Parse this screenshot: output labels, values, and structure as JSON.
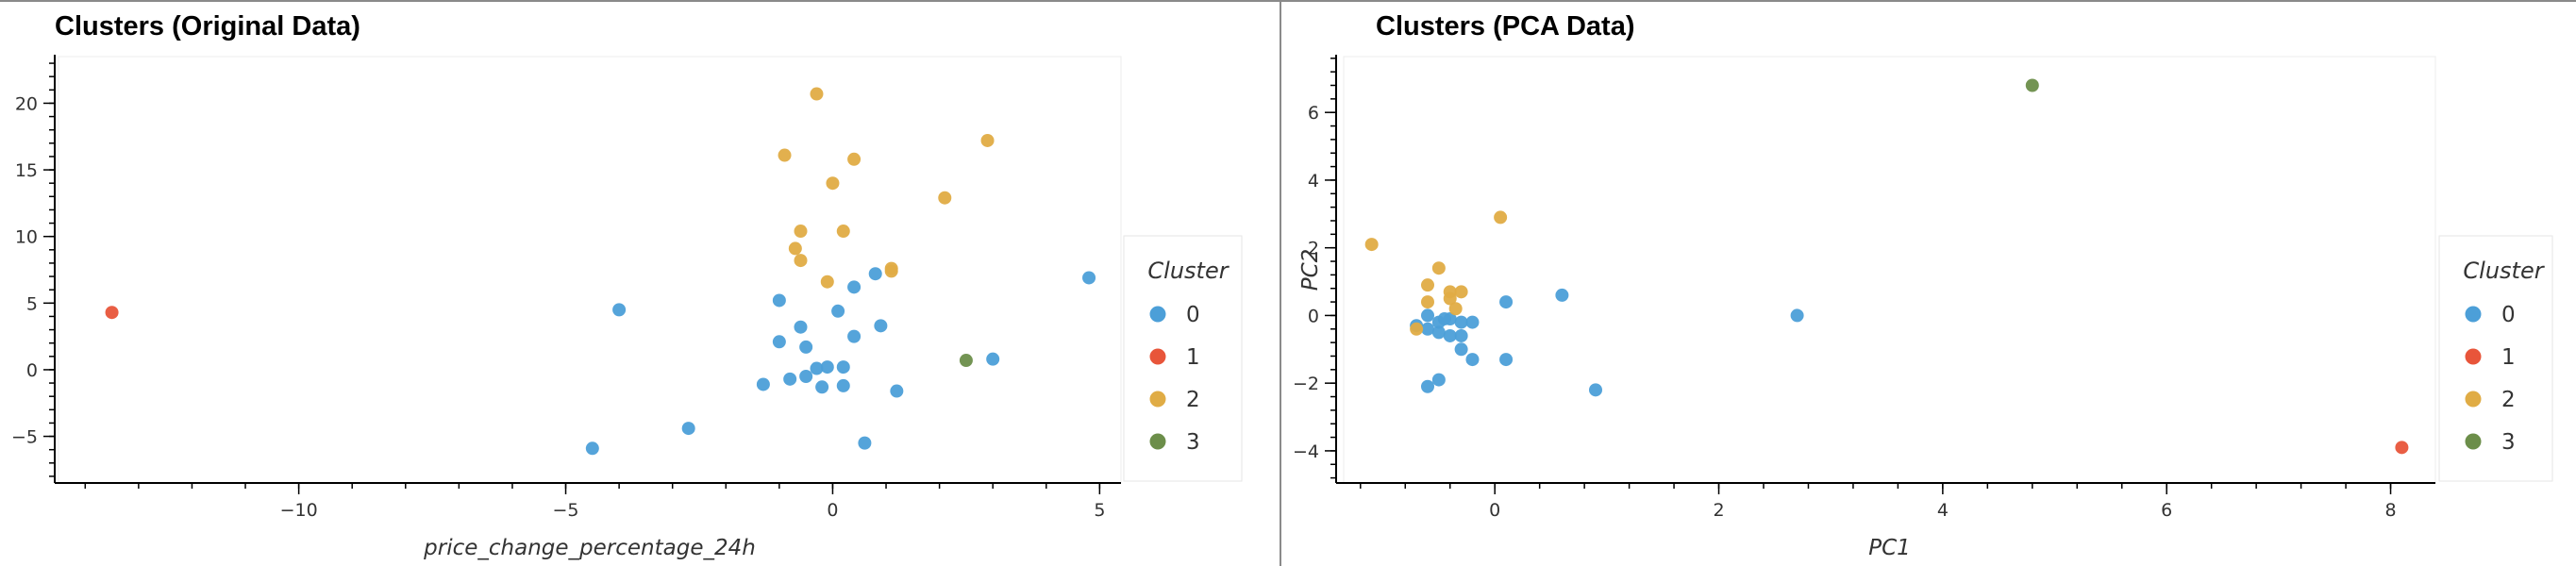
{
  "chart_data": [
    {
      "type": "scatter",
      "title": "Clusters (Original Data)",
      "xlabel": "price_change_percentage_24h",
      "ylabel": "",
      "xlim": [
        -14.5,
        5.4
      ],
      "ylim": [
        -8.5,
        23.5
      ],
      "xticks": [
        -10,
        -5,
        0,
        5
      ],
      "yticks": [
        -5,
        0,
        5,
        10,
        15,
        20
      ],
      "xtick_labels": [
        "−10",
        "−5",
        "0",
        "5"
      ],
      "ytick_labels": [
        "−5",
        "0",
        "5",
        "10",
        "15",
        "20"
      ],
      "grid": false,
      "legend_title": "Cluster",
      "legend_placement": "right",
      "series": [
        {
          "name": "0",
          "color": "#4c9fd8",
          "points": [
            [
              -4.0,
              4.5
            ],
            [
              -2.7,
              -4.4
            ],
            [
              -4.5,
              -5.9
            ],
            [
              -1.3,
              -1.1
            ],
            [
              -0.8,
              -0.7
            ],
            [
              -1.0,
              5.2
            ],
            [
              -1.0,
              2.1
            ],
            [
              -0.6,
              3.2
            ],
            [
              -0.5,
              1.7
            ],
            [
              -0.3,
              0.1
            ],
            [
              -0.1,
              0.2
            ],
            [
              -0.2,
              -1.3
            ],
            [
              0.1,
              4.4
            ],
            [
              0.2,
              0.2
            ],
            [
              0.4,
              6.2
            ],
            [
              0.4,
              2.5
            ],
            [
              0.8,
              7.2
            ],
            [
              0.9,
              3.3
            ],
            [
              1.2,
              -1.6
            ],
            [
              0.6,
              -5.5
            ],
            [
              0.2,
              -1.2
            ],
            [
              -0.5,
              -0.5
            ],
            [
              3.0,
              0.8
            ],
            [
              4.8,
              6.9
            ]
          ]
        },
        {
          "name": "1",
          "color": "#e8553a",
          "points": [
            [
              -13.5,
              4.3
            ]
          ]
        },
        {
          "name": "2",
          "color": "#e0ac45",
          "points": [
            [
              -0.3,
              20.7
            ],
            [
              -0.9,
              16.1
            ],
            [
              0.4,
              15.8
            ],
            [
              2.9,
              17.2
            ],
            [
              0.0,
              14.0
            ],
            [
              2.1,
              12.9
            ],
            [
              -0.6,
              10.4
            ],
            [
              0.2,
              10.4
            ],
            [
              -0.7,
              9.1
            ],
            [
              -0.6,
              8.2
            ],
            [
              1.1,
              7.6
            ],
            [
              1.1,
              7.4
            ],
            [
              -0.1,
              6.6
            ]
          ]
        },
        {
          "name": "3",
          "color": "#6c8e4a",
          "points": [
            [
              2.5,
              0.7
            ]
          ]
        }
      ]
    },
    {
      "type": "scatter",
      "title": "Clusters (PCA Data)",
      "xlabel": "PC1",
      "ylabel": "PC2",
      "xlim": [
        -1.35,
        8.4
      ],
      "ylim": [
        -4.95,
        7.65
      ],
      "xticks": [
        0,
        2,
        4,
        6,
        8
      ],
      "yticks": [
        -4,
        -2,
        0,
        2,
        4,
        6
      ],
      "xtick_labels": [
        "0",
        "2",
        "4",
        "6",
        "8"
      ],
      "ytick_labels": [
        "−4",
        "−2",
        "0",
        "2",
        "4",
        "6"
      ],
      "grid": false,
      "legend_title": "Cluster",
      "legend_placement": "right",
      "series": [
        {
          "name": "0",
          "color": "#4c9fd8",
          "points": [
            [
              -0.6,
              0.0
            ],
            [
              -0.7,
              -0.3
            ],
            [
              -0.5,
              -0.2
            ],
            [
              -0.4,
              -0.1
            ],
            [
              -0.3,
              -0.2
            ],
            [
              -0.2,
              -0.2
            ],
            [
              -0.5,
              -0.5
            ],
            [
              -0.4,
              -0.6
            ],
            [
              -0.3,
              -1.0
            ],
            [
              -0.2,
              -1.3
            ],
            [
              -0.6,
              -2.1
            ],
            [
              -0.5,
              -1.9
            ],
            [
              0.1,
              0.4
            ],
            [
              0.6,
              0.6
            ],
            [
              0.1,
              -1.3
            ],
            [
              0.9,
              -2.2
            ],
            [
              2.7,
              0.0
            ],
            [
              -0.6,
              -0.4
            ],
            [
              -0.3,
              -0.6
            ],
            [
              -0.45,
              -0.1
            ]
          ]
        },
        {
          "name": "1",
          "color": "#e8553a",
          "points": [
            [
              8.1,
              -3.9
            ]
          ]
        },
        {
          "name": "2",
          "color": "#e0ac45",
          "points": [
            [
              -1.1,
              2.1
            ],
            [
              -0.5,
              1.4
            ],
            [
              -0.6,
              0.9
            ],
            [
              -0.4,
              0.7
            ],
            [
              -0.3,
              0.7
            ],
            [
              -0.4,
              0.5
            ],
            [
              -0.6,
              0.4
            ],
            [
              -0.35,
              0.2
            ],
            [
              -0.7,
              -0.4
            ],
            [
              0.05,
              2.9
            ]
          ]
        },
        {
          "name": "3",
          "color": "#6c8e4a",
          "points": [
            [
              4.8,
              6.8
            ]
          ]
        }
      ]
    }
  ]
}
